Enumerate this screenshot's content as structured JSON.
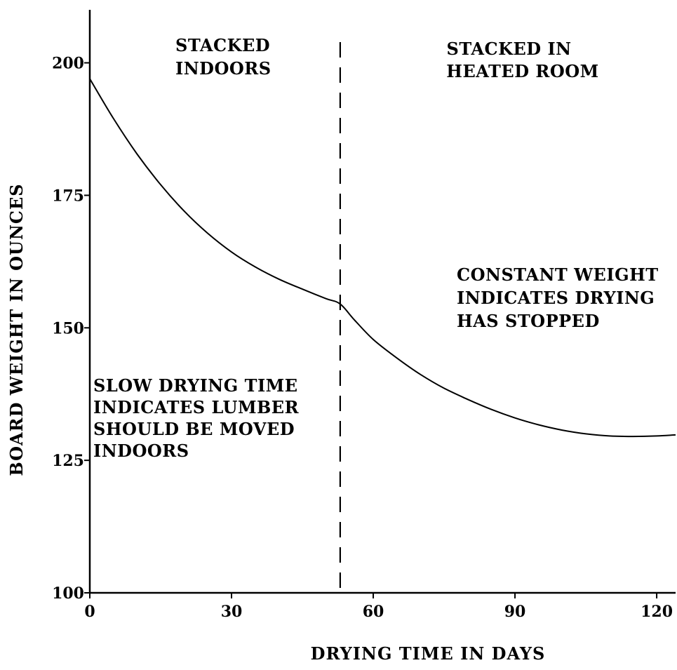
{
  "chart_data": {
    "type": "line",
    "title": "",
    "xlabel": "DRYING TIME IN DAYS",
    "ylabel": "BOARD WEIGHT IN OUNCES",
    "xlim": [
      0,
      124
    ],
    "ylim": [
      100,
      210
    ],
    "x_ticks": [
      0,
      30,
      60,
      90,
      120
    ],
    "y_ticks": [
      100,
      125,
      150,
      175,
      200
    ],
    "grid": false,
    "legend": "none",
    "series": [
      {
        "x": [
          0,
          5,
          10,
          15,
          20,
          25,
          30,
          35,
          40,
          45,
          50,
          53,
          56,
          60,
          65,
          70,
          75,
          80,
          85,
          90,
          95,
          100,
          105,
          110,
          115,
          120,
          124
        ],
        "y": [
          197,
          189.5,
          182.8,
          177,
          172,
          167.8,
          164.3,
          161.5,
          159.2,
          157.3,
          155.5,
          154.5,
          151.5,
          147.8,
          144.3,
          141.2,
          138.6,
          136.5,
          134.6,
          133,
          131.7,
          130.7,
          130,
          129.6,
          129.5,
          129.6,
          129.8
        ]
      }
    ],
    "vlines": [
      {
        "x": 53,
        "style": "dashed"
      }
    ],
    "annotations": [
      {
        "id": "stacked-indoors",
        "lines": [
          "STACKED",
          "INDOORS"
        ]
      },
      {
        "id": "stacked-heated",
        "lines": [
          "STACKED IN",
          "HEATED ROOM"
        ]
      },
      {
        "id": "constant-weight",
        "lines": [
          "CONSTANT WEIGHT",
          "INDICATES DRYING",
          "HAS STOPPED"
        ]
      },
      {
        "id": "slow-drying",
        "lines": [
          "SLOW DRYING TIME",
          "INDICATES LUMBER",
          "SHOULD BE MOVED",
          "INDOORS"
        ]
      }
    ],
    "colors": {
      "line": "#000000",
      "background": "#ffffff"
    }
  }
}
